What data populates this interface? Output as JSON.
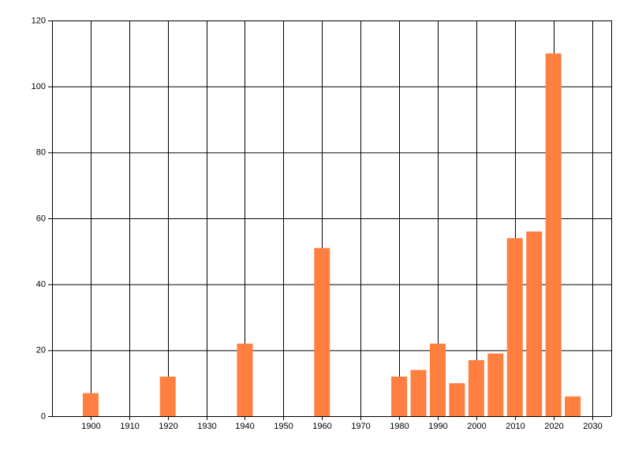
{
  "chart_data": {
    "type": "bar",
    "x": [
      1900,
      1920,
      1940,
      1960,
      1980,
      1985,
      1990,
      1995,
      2000,
      2005,
      2010,
      2015,
      2020,
      2025
    ],
    "values": [
      7,
      12,
      22,
      51,
      12,
      14,
      22,
      10,
      17,
      19,
      54,
      56,
      110,
      6
    ],
    "color": "#ff7f41",
    "xlim": [
      1890,
      2035
    ],
    "xticks": [
      1900,
      1910,
      1920,
      1930,
      1940,
      1950,
      1960,
      1970,
      1980,
      1990,
      2000,
      2010,
      2020,
      2030
    ],
    "ylim": [
      0,
      120
    ],
    "yticks": [
      0,
      20,
      40,
      60,
      80,
      100,
      120
    ],
    "grid": true
  }
}
